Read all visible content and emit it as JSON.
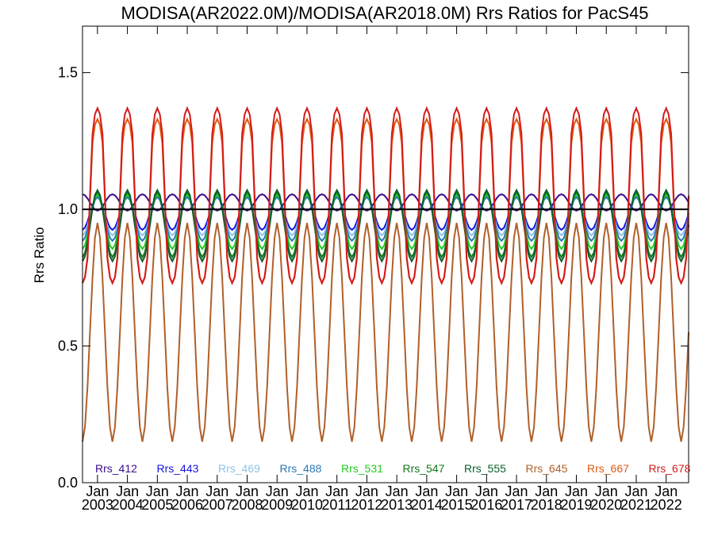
{
  "chart_data": {
    "type": "line",
    "title": "MODISA(AR2022.0M)/MODISA(AR2018.0M)  Rrs Ratios for PacS45",
    "xlabel": "",
    "ylabel": "Rrs Ratio",
    "xlim": [
      "2002-07",
      "2022-10"
    ],
    "ylim": [
      0.0,
      1.67
    ],
    "yticks": [
      0.0,
      0.5,
      1.0,
      1.5
    ],
    "ytick_labels": [
      "0.0",
      "0.5",
      "1.0",
      "1.5"
    ],
    "xtick_top_labels": [
      "Jan",
      "Jan",
      "Jan",
      "Jan",
      "Jan",
      "Jan",
      "Jan",
      "Jan",
      "Jan",
      "Jan",
      "Jan",
      "Jan",
      "Jan",
      "Jan",
      "Jan",
      "Jan",
      "Jan",
      "Jan",
      "Jan",
      "Jan"
    ],
    "xtick_years": [
      "2003",
      "2004",
      "2005",
      "2006",
      "2007",
      "2008",
      "2009",
      "2010",
      "2011",
      "2012",
      "2013",
      "2014",
      "2015",
      "2016",
      "2017",
      "2018",
      "2019",
      "2020",
      "2021",
      "2022"
    ],
    "reference_line": 1.0,
    "grid": false,
    "legend_position": "bottom",
    "series": [
      {
        "name": "Rrs_412",
        "color": "#3a0a8c",
        "peak_month": 7,
        "mean": 1.025,
        "amplitude": 0.03,
        "sharpness": 1
      },
      {
        "name": "Rrs_443",
        "color": "#1414e0",
        "peak_month": 1,
        "mean": 0.985,
        "amplitude": 0.06,
        "sharpness": 1
      },
      {
        "name": "Rrs_469",
        "color": "#8cc4e6",
        "peak_month": 1,
        "mean": 0.975,
        "amplitude": 0.07,
        "sharpness": 1
      },
      {
        "name": "Rrs_488",
        "color": "#2a7ab8",
        "peak_month": 1,
        "mean": 0.965,
        "amplitude": 0.08,
        "sharpness": 1
      },
      {
        "name": "Rrs_531",
        "color": "#22cc22",
        "peak_month": 1,
        "mean": 0.955,
        "amplitude": 0.1,
        "sharpness": 1
      },
      {
        "name": "Rrs_547",
        "color": "#11791a",
        "peak_month": 1,
        "mean": 0.945,
        "amplitude": 0.12,
        "sharpness": 1
      },
      {
        "name": "Rrs_555",
        "color": "#0c5e2c",
        "peak_month": 1,
        "mean": 0.94,
        "amplitude": 0.13,
        "sharpness": 1
      },
      {
        "name": "Rrs_645",
        "color": "#b0602a",
        "peak_month": 1,
        "mean": 0.55,
        "amplitude": 0.4,
        "sharpness": 1
      },
      {
        "name": "Rrs_667",
        "color": "#e05a10",
        "peak_month": 1,
        "mean": 1.03,
        "amplitude": 0.3,
        "sharpness": 2
      },
      {
        "name": "Rrs_678",
        "color": "#d41a1a",
        "peak_month": 1,
        "mean": 1.05,
        "amplitude": 0.32,
        "sharpness": 2
      }
    ]
  }
}
